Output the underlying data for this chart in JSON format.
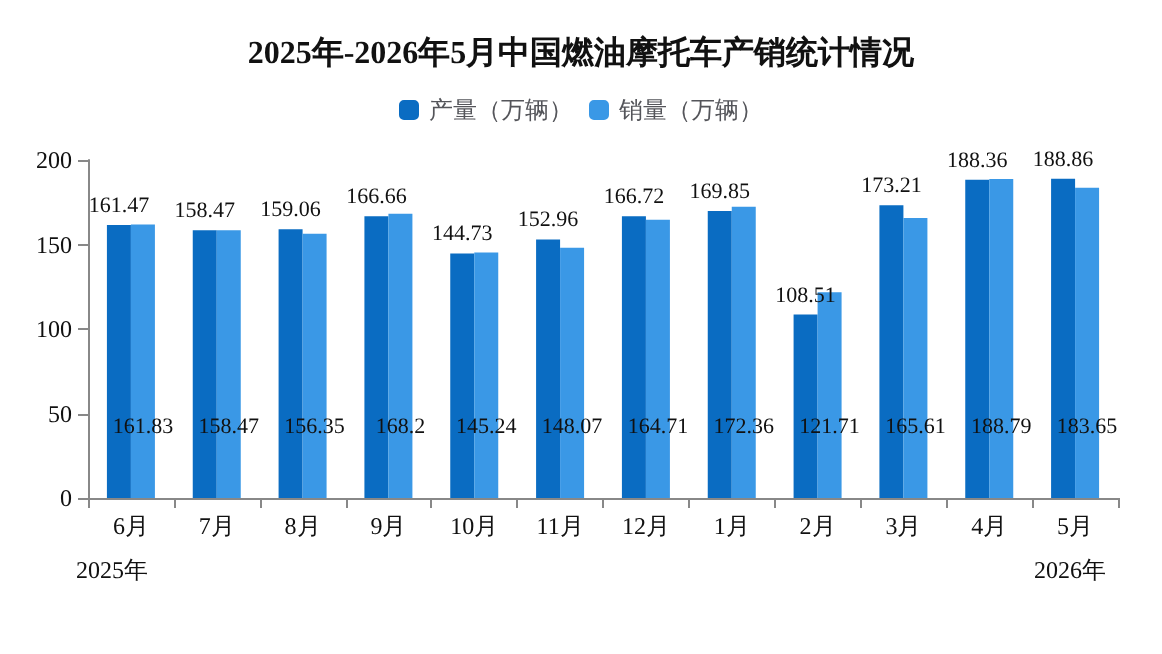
{
  "chart_data": {
    "type": "bar",
    "title": "2025年-2026年5月中国燃油摩托车产销统计情况",
    "categories": [
      "6月",
      "7月",
      "8月",
      "9月",
      "10月",
      "11月",
      "12月",
      "1月",
      "2月",
      "3月",
      "4月",
      "5月"
    ],
    "series": [
      {
        "name": "产量（万辆）",
        "color": "#0a6cc2",
        "values": [
          161.47,
          158.47,
          159.06,
          166.66,
          144.73,
          152.96,
          166.72,
          169.85,
          108.51,
          173.21,
          188.36,
          188.86
        ]
      },
      {
        "name": "销量（万辆）",
        "color": "#3a98e6",
        "values": [
          161.83,
          158.47,
          156.35,
          168.2,
          145.24,
          148.07,
          164.71,
          172.36,
          121.71,
          165.61,
          188.79,
          183.65
        ]
      }
    ],
    "ylim": [
      0,
      200
    ],
    "yticks": [
      0,
      50,
      100,
      150,
      200
    ],
    "grid": false,
    "legend": "top",
    "data_labels": true,
    "annotations": [
      "2025年",
      "2026年"
    ]
  }
}
